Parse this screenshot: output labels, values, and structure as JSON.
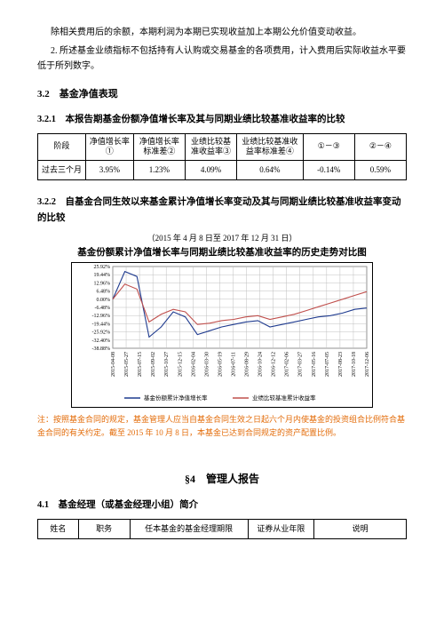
{
  "intro": {
    "p1": "除相关费用后的余额，本期利润为本期已实现收益加上本期公允价值变动收益。",
    "p2": "2. 所述基金业绩指标不包括持有人认购或交易基金的各项费用，计入费用后实际收益水平要低于所列数字。"
  },
  "sec32": {
    "heading": "3.2　基金净值表现",
    "sub321": "3.2.1　本报告期基金份额净值增长率及其与同期业绩比较基准收益率的比较",
    "table1": {
      "headers": [
        "阶段",
        "净值增长率①",
        "净值增长率标准差②",
        "业绩比较基准收益率③",
        "业绩比较基准收益率标准差④",
        "①－③",
        "②－④"
      ],
      "row": [
        "过去三个月",
        "3.95%",
        "1.23%",
        "4.09%",
        "0.64%",
        "-0.14%",
        "0.59%"
      ],
      "col_widths": [
        "13%",
        "13%",
        "14%",
        "14%",
        "18%",
        "14%",
        "14%"
      ]
    },
    "sub322": "3.2.2　自基金合同生效以来基金累计净值增长率变动及其与同期业绩比较基准收益率变动的比较"
  },
  "chart": {
    "date_range": "（2015 年 4 月 8 日至 2017 年 12 月 31 日）",
    "title": "基金份额累计净值增长率与同期业绩比较基准收益率的历史走势对比图",
    "ylabels": [
      "25.92%",
      "19.44%",
      "12.96%",
      "6.48%",
      "0.00%",
      "-6.48%",
      "-12.96%",
      "-19.44%",
      "-25.92%",
      "-32.40%",
      "-38.88%"
    ],
    "xlabels": [
      "2015-04-08",
      "2015-05-27",
      "2015-07-15",
      "2015-09-02",
      "2015-10-27",
      "2015-12-15",
      "2016-02-04",
      "2016-03-30",
      "2016-05-19",
      "2016-07-11",
      "2016-08-29",
      "2016-10-24",
      "2016-12-12",
      "2017-02-06",
      "2017-03-27",
      "2017-05-16",
      "2017-07-05",
      "2017-08-23",
      "2017-10-18",
      "2017-12-06"
    ],
    "series": {
      "fund": {
        "label": "基金份额累计净值增长率",
        "color": "#1f3b8f",
        "data": [
          0,
          22,
          18,
          -30,
          -22,
          -10,
          -14,
          -28,
          -25,
          -22,
          -20,
          -18,
          -17,
          -22,
          -20,
          -18,
          -16,
          -14,
          -13,
          -11,
          -8,
          -7
        ]
      },
      "bench": {
        "label": "业绩比较基准累计收益率",
        "color": "#c0504d",
        "data": [
          0,
          12,
          8,
          -18,
          -12,
          -8,
          -10,
          -20,
          -19,
          -17,
          -16,
          -14,
          -13,
          -16,
          -14,
          -12,
          -9,
          -6,
          -3,
          0,
          3,
          6
        ]
      }
    },
    "grid_color": "#bfbfbf",
    "background": "#ffffff",
    "ylim": [
      -38.88,
      25.92
    ]
  },
  "note": "注：按照基金合同的规定，基金管理人应当自基金合同生效之日起六个月内使基金的投资组合比例符合基金合同的有关约定。截至 2015 年 10 月 8 日，本基金已达到合同规定的资产配置比例。",
  "sec4": {
    "heading": "§4　管理人报告",
    "sub41": "4.1　基金经理（或基金经理小组）简介",
    "table2_headers": [
      "姓名",
      "职务",
      "任本基金的基金经理期限",
      "证券从业年限",
      "说明"
    ],
    "table2_widths": [
      "11%",
      "14%",
      "32%",
      "18%",
      "25%"
    ]
  }
}
